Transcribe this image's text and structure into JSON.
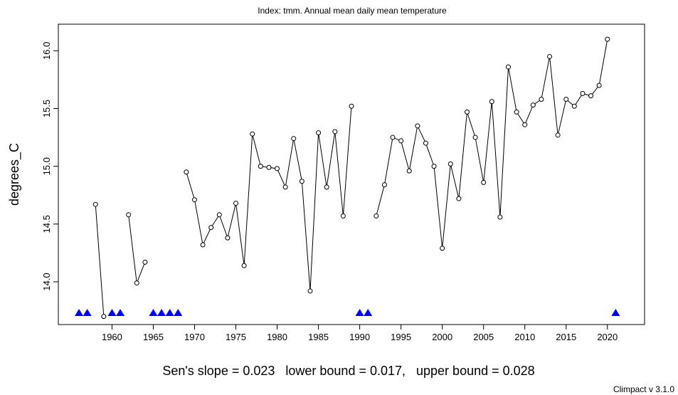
{
  "chart_data": {
    "type": "line",
    "title": "Index: tmm. Annual mean daily mean temperature",
    "xlabel": "",
    "ylabel": "degrees_C",
    "xlim": [
      1953.5,
      2024.5
    ],
    "ylim": [
      13.63,
      16.23
    ],
    "x_ticks": [
      1960,
      1965,
      1970,
      1975,
      1980,
      1985,
      1990,
      1995,
      2000,
      2005,
      2010,
      2015,
      2020
    ],
    "y_ticks": [
      14.0,
      14.5,
      15.0,
      15.5,
      16.0
    ],
    "y_tick_labels": [
      "14.0",
      "14.5",
      "15.0",
      "15.5",
      "16.0"
    ],
    "grid": false,
    "series": [
      {
        "years": [
          1956,
          1957,
          1958,
          1959,
          1960,
          1961,
          1962,
          1963,
          1964,
          1965,
          1966,
          1967,
          1968,
          1969,
          1970,
          1971,
          1972,
          1973,
          1974,
          1975,
          1976,
          1977,
          1978,
          1979,
          1980,
          1981,
          1982,
          1983,
          1984,
          1985,
          1986,
          1987,
          1988,
          1989,
          1990,
          1991,
          1992,
          1993,
          1994,
          1995,
          1996,
          1997,
          1998,
          1999,
          2000,
          2001,
          2002,
          2003,
          2004,
          2005,
          2006,
          2007,
          2008,
          2009,
          2010,
          2011,
          2012,
          2013,
          2014,
          2015,
          2016,
          2017,
          2018,
          2019,
          2020,
          2021
        ],
        "values": [
          null,
          null,
          14.67,
          13.7,
          null,
          null,
          14.58,
          13.99,
          14.17,
          null,
          null,
          null,
          null,
          14.95,
          14.71,
          14.32,
          14.47,
          14.58,
          14.38,
          14.68,
          14.14,
          15.28,
          15.0,
          14.99,
          14.98,
          14.82,
          15.24,
          14.87,
          13.92,
          15.29,
          14.82,
          15.3,
          14.57,
          15.52,
          null,
          null,
          14.57,
          14.84,
          15.25,
          15.22,
          14.96,
          15.35,
          15.2,
          15.0,
          14.29,
          15.02,
          14.72,
          15.47,
          15.25,
          14.86,
          15.56,
          14.56,
          15.86,
          15.47,
          15.36,
          15.53,
          15.58,
          15.95,
          15.27,
          15.58,
          15.52,
          15.63,
          15.61,
          15.7,
          16.1,
          null
        ]
      }
    ],
    "missing_marker_years": [
      1956,
      1957,
      1960,
      1961,
      1965,
      1966,
      1967,
      1968,
      1990,
      1991,
      2021
    ],
    "missing_marker_color": "#0000ff",
    "stats_text": "Sen's slope = 0.023   lower bound = 0.017,   upper bound = 0.028",
    "credit": "Climpact v 3.1.0"
  }
}
